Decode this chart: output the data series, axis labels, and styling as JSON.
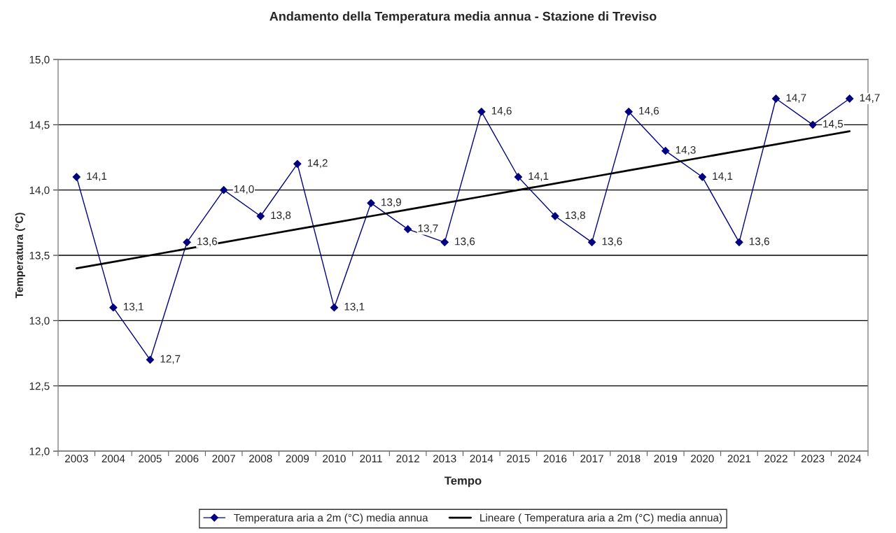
{
  "chart_data": {
    "type": "line",
    "title": "Andamento della Temperatura media annua - Stazione di Treviso",
    "xlabel": "Tempo",
    "ylabel": "Temperatura (°C)",
    "categories": [
      "2003",
      "2004",
      "2005",
      "2006",
      "2007",
      "2008",
      "2009",
      "2010",
      "2011",
      "2012",
      "2013",
      "2014",
      "2015",
      "2016",
      "2017",
      "2018",
      "2019",
      "2020",
      "2021",
      "2022",
      "2023",
      "2024"
    ],
    "series": [
      {
        "name": "Temperatura aria a 2m (°C) media annua",
        "color": "#000080",
        "marker": "diamond",
        "values": [
          14.1,
          13.1,
          12.7,
          13.6,
          14.0,
          13.8,
          14.2,
          13.1,
          13.9,
          13.7,
          13.6,
          14.6,
          14.1,
          13.8,
          13.6,
          14.6,
          14.3,
          14.1,
          13.6,
          14.7,
          14.5,
          14.7
        ],
        "value_labels": [
          "14,1",
          "13,1",
          "12,7",
          "13,6",
          "14,0",
          "13,8",
          "14,2",
          "13,1",
          "13,9",
          "13,7",
          "13,6",
          "14,6",
          "14,1",
          "13,8",
          "13,6",
          "14,6",
          "14,3",
          "14,1",
          "13,6",
          "14,7",
          "14,5",
          "14,7"
        ]
      },
      {
        "name": "Lineare ( Temperatura aria a 2m (°C) media annua)",
        "type": "line",
        "color": "#000000",
        "marker": "none",
        "values": [
          13.4,
          13.45,
          13.5,
          13.55,
          13.6,
          13.65,
          13.7,
          13.75,
          13.8,
          13.85,
          13.9,
          13.95,
          14.0,
          14.05,
          14.1,
          14.15,
          14.2,
          14.25,
          14.3,
          14.35,
          14.4,
          14.45
        ]
      }
    ],
    "ylim": [
      12.0,
      15.0
    ],
    "yticks": [
      {
        "value": 12.0,
        "label": "12,0"
      },
      {
        "value": 12.5,
        "label": "12,5"
      },
      {
        "value": 13.0,
        "label": "13,0"
      },
      {
        "value": 13.5,
        "label": "13,5"
      },
      {
        "value": 14.0,
        "label": "14,0"
      },
      {
        "value": 14.5,
        "label": "14,5"
      },
      {
        "value": 15.0,
        "label": "15,0"
      }
    ],
    "grid": "y",
    "legend": "bottom"
  }
}
